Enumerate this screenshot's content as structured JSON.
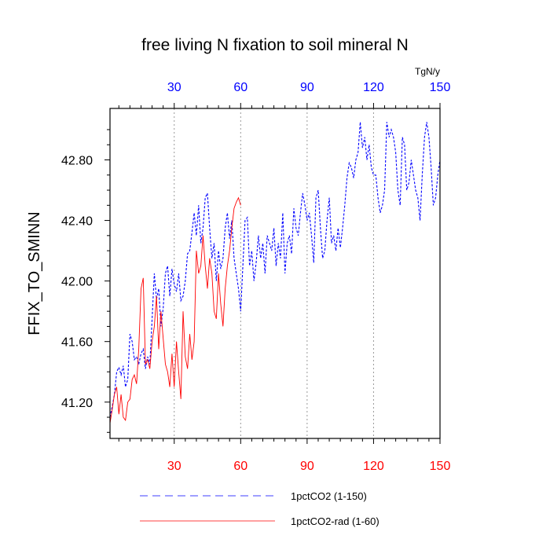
{
  "chart_data": {
    "type": "line",
    "title": "free living N fixation to soil mineral N",
    "ylabel": "FFIX_TO_SMINN",
    "top_axis_unit": "TgN/y",
    "xlim": [
      1,
      150
    ],
    "ylim": [
      40.96,
      43.14
    ],
    "x_ticks": [
      30,
      60,
      90,
      120,
      150
    ],
    "x_tick_labels_top": [
      "30",
      "60",
      "90",
      "120",
      "150"
    ],
    "x_tick_labels_bottom": [
      "30",
      "60",
      "90",
      "120",
      "150"
    ],
    "y_ticks": [
      41.2,
      41.6,
      42.0,
      42.4,
      42.8
    ],
    "y_tick_labels": [
      "41.20",
      "41.60",
      "42.00",
      "42.40",
      "42.80"
    ],
    "grid": "vertical dotted at x ticks",
    "legend_position": "below plot",
    "series": [
      {
        "name": "1pctCO2 (1-150)",
        "color": "#0000ff",
        "style": "dashed",
        "x": [
          1,
          2,
          3,
          4,
          5,
          6,
          7,
          8,
          9,
          10,
          11,
          12,
          13,
          14,
          15,
          16,
          17,
          18,
          19,
          20,
          21,
          22,
          23,
          24,
          25,
          26,
          27,
          28,
          29,
          30,
          31,
          32,
          33,
          34,
          35,
          36,
          37,
          38,
          39,
          40,
          41,
          42,
          43,
          44,
          45,
          46,
          47,
          48,
          49,
          50,
          51,
          52,
          53,
          54,
          55,
          56,
          57,
          58,
          59,
          60,
          61,
          62,
          63,
          64,
          65,
          66,
          67,
          68,
          69,
          70,
          71,
          72,
          73,
          74,
          75,
          76,
          77,
          78,
          79,
          80,
          81,
          82,
          83,
          84,
          85,
          86,
          87,
          88,
          89,
          90,
          91,
          92,
          93,
          94,
          95,
          96,
          97,
          98,
          99,
          100,
          101,
          102,
          103,
          104,
          105,
          106,
          107,
          108,
          109,
          110,
          111,
          112,
          113,
          114,
          115,
          116,
          117,
          118,
          119,
          120,
          121,
          122,
          123,
          124,
          125,
          126,
          127,
          128,
          129,
          130,
          131,
          132,
          133,
          134,
          135,
          136,
          137,
          138,
          139,
          140,
          141,
          142,
          143,
          144,
          145,
          146,
          147,
          148,
          149,
          150
        ],
        "y": [
          41.1,
          41.17,
          41.25,
          41.4,
          41.43,
          41.38,
          41.44,
          41.3,
          41.35,
          41.65,
          41.6,
          41.48,
          41.5,
          41.45,
          41.52,
          41.55,
          41.42,
          41.5,
          41.45,
          41.75,
          42.05,
          41.88,
          41.95,
          41.7,
          41.82,
          42.05,
          42.1,
          41.9,
          42.08,
          41.98,
          41.93,
          42.05,
          41.87,
          41.9,
          42.0,
          42.18,
          42.2,
          42.32,
          42.45,
          42.3,
          42.5,
          42.25,
          42.35,
          42.55,
          42.58,
          42.35,
          42.15,
          42.25,
          42.0,
          42.2,
          42.08,
          42.15,
          42.35,
          42.45,
          42.28,
          42.4,
          42.15,
          42.05,
          41.95,
          41.8,
          42.1,
          42.4,
          42.42,
          42.1,
          42.2,
          42.0,
          42.12,
          42.3,
          42.15,
          42.25,
          42.05,
          42.3,
          42.25,
          42.2,
          42.35,
          42.1,
          42.25,
          42.15,
          42.45,
          42.05,
          42.25,
          42.3,
          42.18,
          42.48,
          42.35,
          42.3,
          42.45,
          42.58,
          42.5,
          42.4,
          42.45,
          42.3,
          42.12,
          42.55,
          42.6,
          42.35,
          42.15,
          42.2,
          42.4,
          42.55,
          42.25,
          42.3,
          42.2,
          42.35,
          42.22,
          42.35,
          42.5,
          42.68,
          42.78,
          42.75,
          42.68,
          42.8,
          42.85,
          43.05,
          42.88,
          42.95,
          42.8,
          42.9,
          42.75,
          42.7,
          42.7,
          42.55,
          42.45,
          42.5,
          42.6,
          43.05,
          42.95,
          43.0,
          42.95,
          42.85,
          42.6,
          42.5,
          42.95,
          42.9,
          42.6,
          42.65,
          42.8,
          42.7,
          42.6,
          42.55,
          42.4,
          42.7,
          42.95,
          43.05,
          42.95,
          42.75,
          42.5,
          42.55,
          42.7,
          42.8
        ]
      },
      {
        "name": "1pctCO2-rad (1-60)",
        "color": "#ff0000",
        "style": "solid",
        "x": [
          1,
          2,
          3,
          4,
          5,
          6,
          7,
          8,
          9,
          10,
          11,
          12,
          13,
          14,
          15,
          16,
          17,
          18,
          19,
          20,
          21,
          22,
          23,
          24,
          25,
          26,
          27,
          28,
          29,
          30,
          31,
          32,
          33,
          34,
          35,
          36,
          37,
          38,
          39,
          40,
          41,
          42,
          43,
          44,
          45,
          46,
          47,
          48,
          49,
          50,
          51,
          52,
          53,
          54,
          55,
          56,
          57,
          58,
          59,
          60
        ],
        "y": [
          41.06,
          41.15,
          41.25,
          41.3,
          41.12,
          41.25,
          41.1,
          41.08,
          41.2,
          41.22,
          41.35,
          41.38,
          41.32,
          41.55,
          41.95,
          42.02,
          41.45,
          41.48,
          41.42,
          41.6,
          41.7,
          41.9,
          41.55,
          41.8,
          41.62,
          41.45,
          41.4,
          41.3,
          41.52,
          41.3,
          41.6,
          41.4,
          41.22,
          41.8,
          41.5,
          41.42,
          41.65,
          41.48,
          41.6,
          42.2,
          42.05,
          42.1,
          42.3,
          42.1,
          41.95,
          42.15,
          42.05,
          41.8,
          41.75,
          42.05,
          41.85,
          41.7,
          41.95,
          42.1,
          42.2,
          42.35,
          42.48,
          42.52,
          42.55,
          42.5
        ]
      }
    ]
  }
}
